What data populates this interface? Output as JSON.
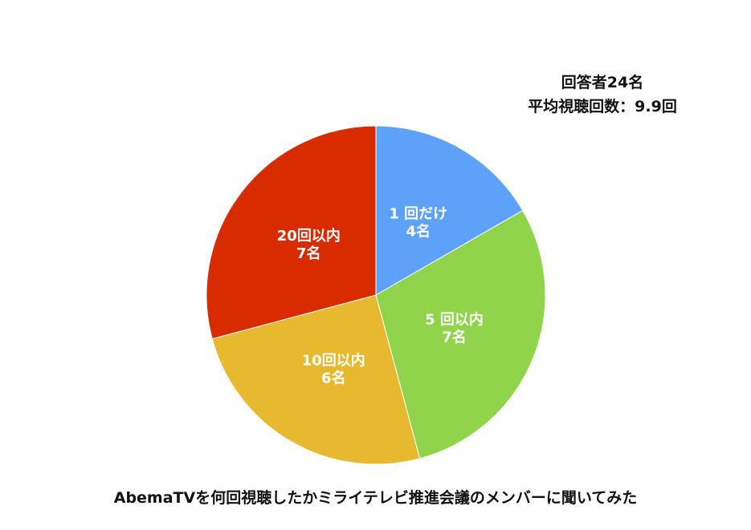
{
  "summary": {
    "respondents": "回答者24名",
    "average": "平均視聴回数：9.9回"
  },
  "caption": "AbemaTVを何回視聴したかミライテレビ推進会議のメンバーに聞いてみた",
  "chart_data": {
    "type": "pie",
    "title": "",
    "start": "top",
    "direction": "clockwise",
    "slices": [
      {
        "label": "1 回だけ",
        "value": 4,
        "value_label": "4名",
        "color": "#5ea1f9"
      },
      {
        "label": "5 回以内",
        "value": 7,
        "value_label": "7名",
        "color": "#8fd44b"
      },
      {
        "label": "10回以内",
        "value": 6,
        "value_label": "6名",
        "color": "#e6b92f"
      },
      {
        "label": "20回以内",
        "value": 7,
        "value_label": "7名",
        "color": "#d92b00"
      }
    ]
  }
}
